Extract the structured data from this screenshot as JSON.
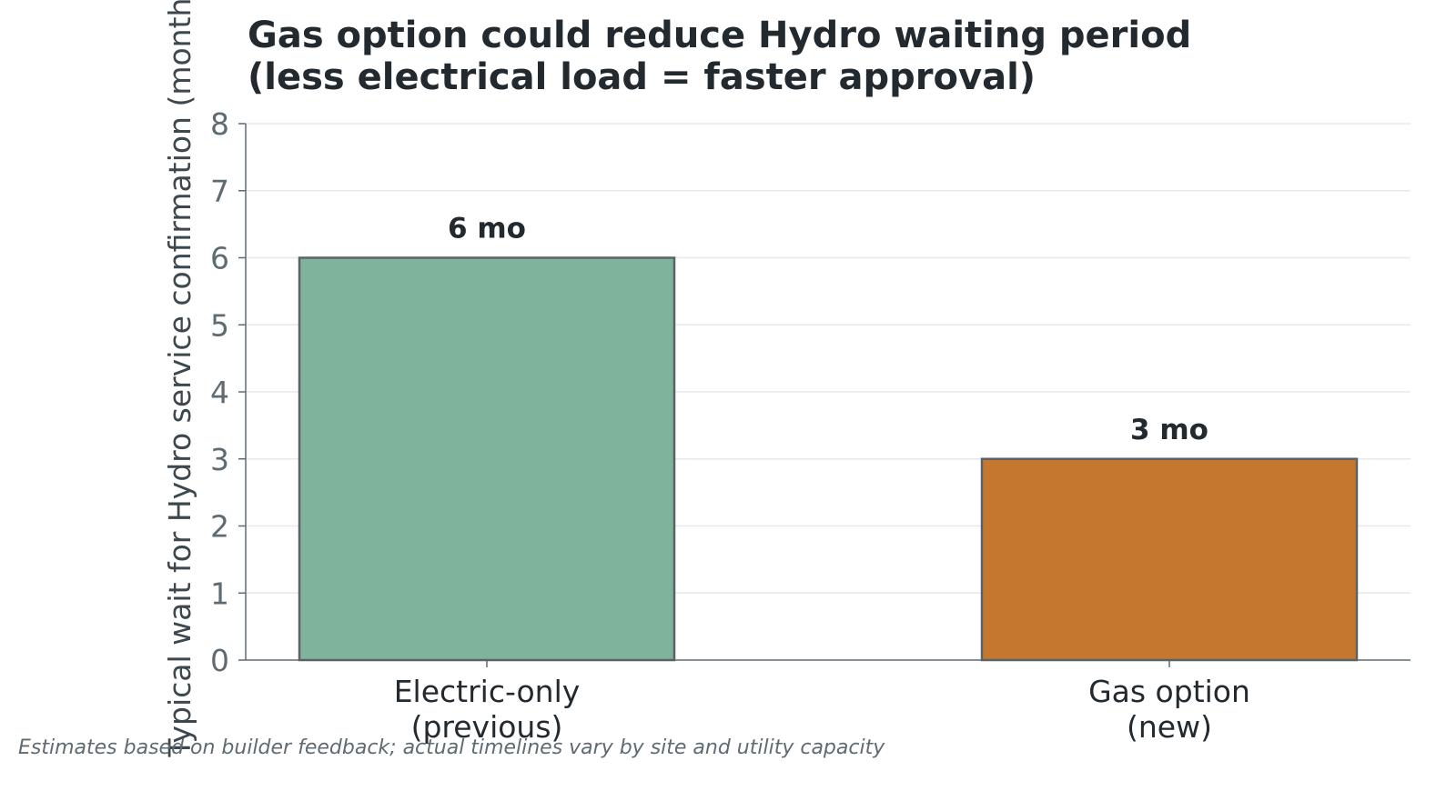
{
  "chart_data": {
    "type": "bar",
    "title": "Gas option could reduce Hydro waiting period\n(less electrical load = faster approval)",
    "title_lines": [
      "Gas option could reduce Hydro waiting period",
      "(less electrical load = faster approval)"
    ],
    "ylabel": "Typical wait for Hydro service confirmation (months)",
    "xlabel": "",
    "categories": [
      "Electric-only\n(previous)",
      "Gas option\n(new)"
    ],
    "category_lines": [
      [
        "Electric-only",
        "(previous)"
      ],
      [
        "Gas option",
        "(new)"
      ]
    ],
    "values": [
      6,
      3
    ],
    "data_labels": [
      "6 mo",
      "3 mo"
    ],
    "colors": [
      "#7fb39b",
      "#c5772f"
    ],
    "edge_color": "#5b6266",
    "ylim": [
      0,
      8
    ],
    "yticks": [
      "0",
      "1",
      "2",
      "3",
      "4",
      "5",
      "6",
      "7",
      "8"
    ],
    "grid": "horizontal",
    "legend": "none"
  },
  "footnote": "Estimates based on builder feedback; actual timelines vary by site and utility capacity"
}
